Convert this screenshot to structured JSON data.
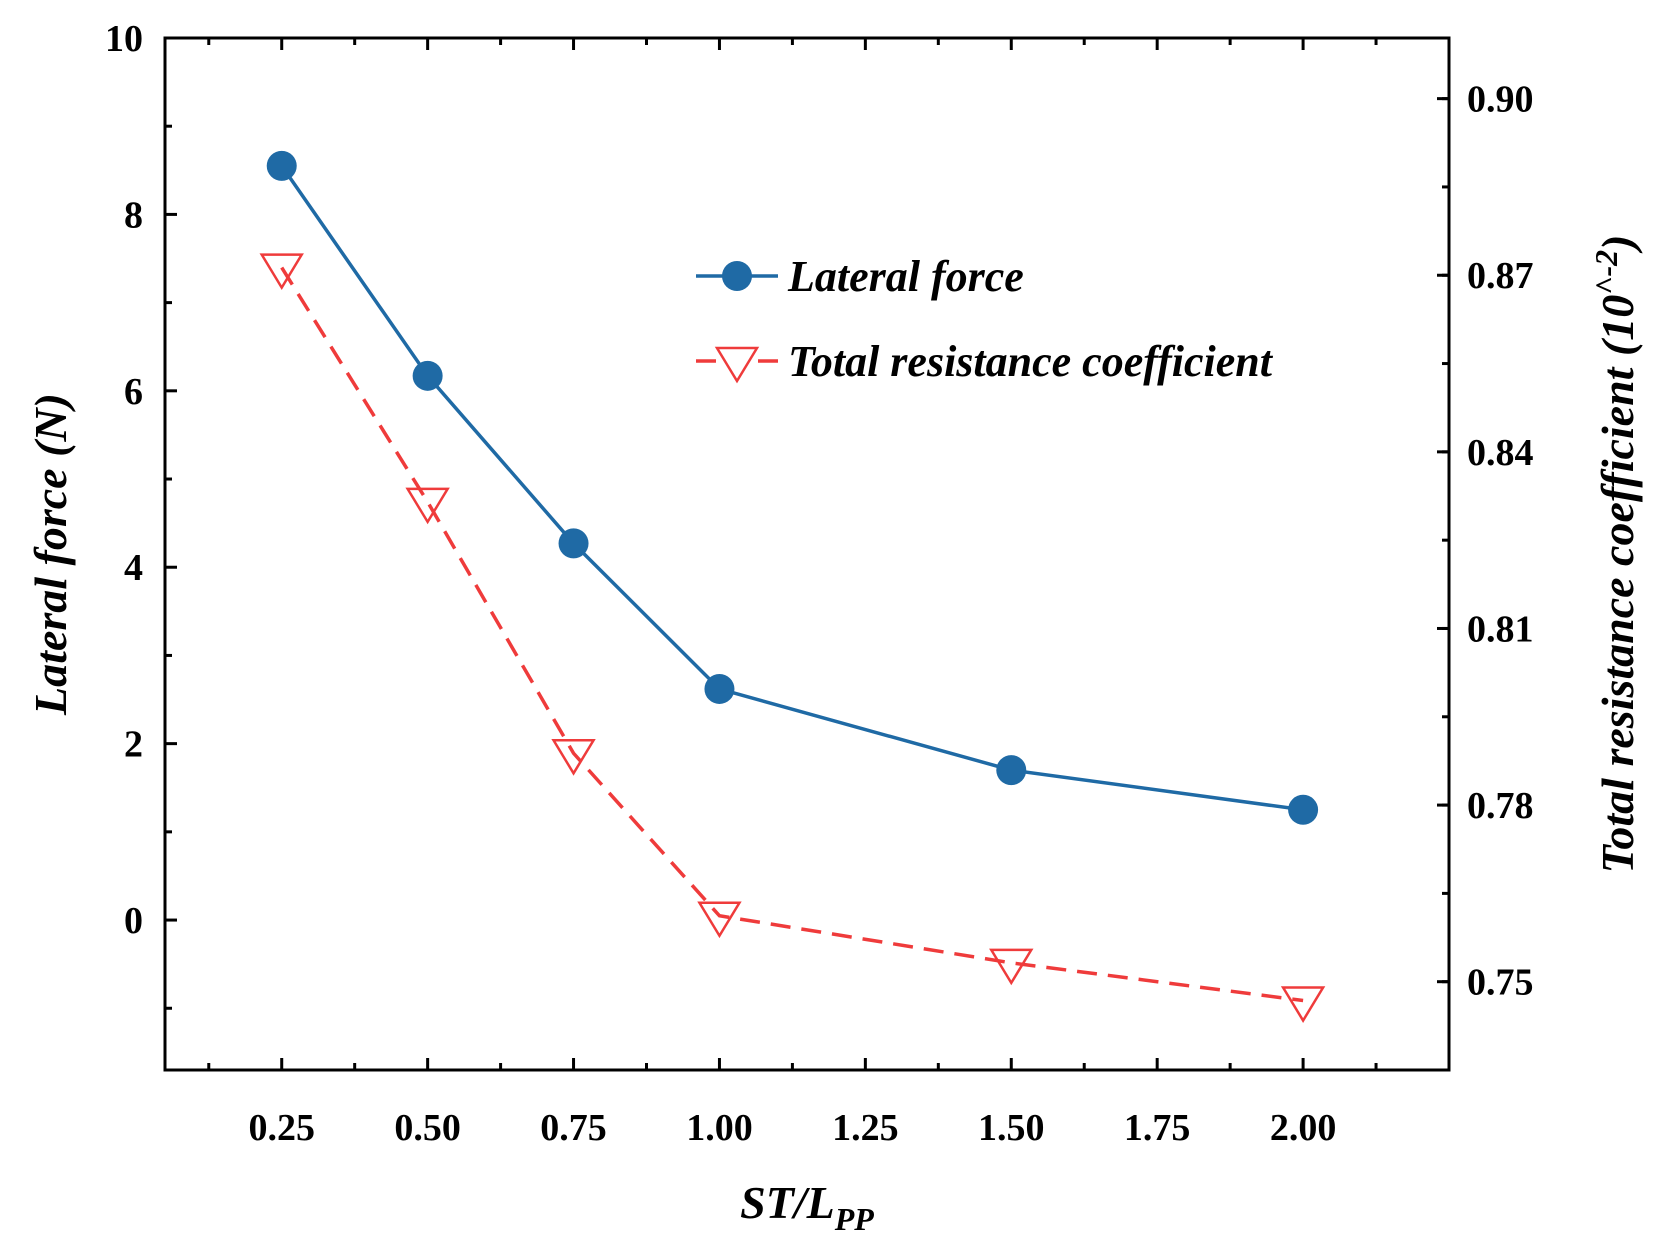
{
  "chart_data": {
    "type": "line",
    "x": [
      0.25,
      0.5,
      0.75,
      1.0,
      1.5,
      2.0
    ],
    "xlim": [
      0.05,
      2.25
    ],
    "x_ticks": [
      "0.25",
      "0.50",
      "0.75",
      "1.00",
      "1.25",
      "1.50",
      "1.75",
      "2.00"
    ],
    "x_tick_values": [
      0.25,
      0.5,
      0.75,
      1.0,
      1.25,
      1.5,
      1.75,
      2.0
    ],
    "xlabel_main": "ST/L",
    "xlabel_sub": "PP",
    "y_left": {
      "label": "Lateral force (N)",
      "ylim": [
        -1.7,
        10
      ],
      "ticks": [
        "0",
        "2",
        "4",
        "6",
        "8",
        "10"
      ],
      "tick_values": [
        0,
        2,
        4,
        6,
        8,
        10
      ]
    },
    "y_right": {
      "label_main": "Total resistance coefficient (10",
      "label_sup": "^-2",
      "label_end": ")",
      "ylim": [
        0.735,
        0.9103
      ],
      "ticks": [
        "0.75",
        "0.78",
        "0.81",
        "0.84",
        "0.87",
        "0.90"
      ],
      "tick_values": [
        0.75,
        0.78,
        0.81,
        0.84,
        0.87,
        0.9
      ]
    },
    "series": [
      {
        "name": "Lateral force",
        "axis": "left",
        "color": "#1f6aa5",
        "marker": "circle",
        "line_style": "solid",
        "values": [
          8.55,
          6.17,
          4.27,
          2.62,
          1.7,
          1.25
        ]
      },
      {
        "name": "Total resistance coefficient",
        "axis": "right",
        "color": "#ef3b3b",
        "marker": "triangle-down",
        "line_style": "dashed",
        "values": [
          0.8713,
          0.8315,
          0.7888,
          0.7612,
          0.7532,
          0.7468
        ]
      }
    ],
    "legend": {
      "position": "upper-center-right",
      "entries": [
        "Lateral force",
        "Total resistance coefficient"
      ]
    }
  }
}
